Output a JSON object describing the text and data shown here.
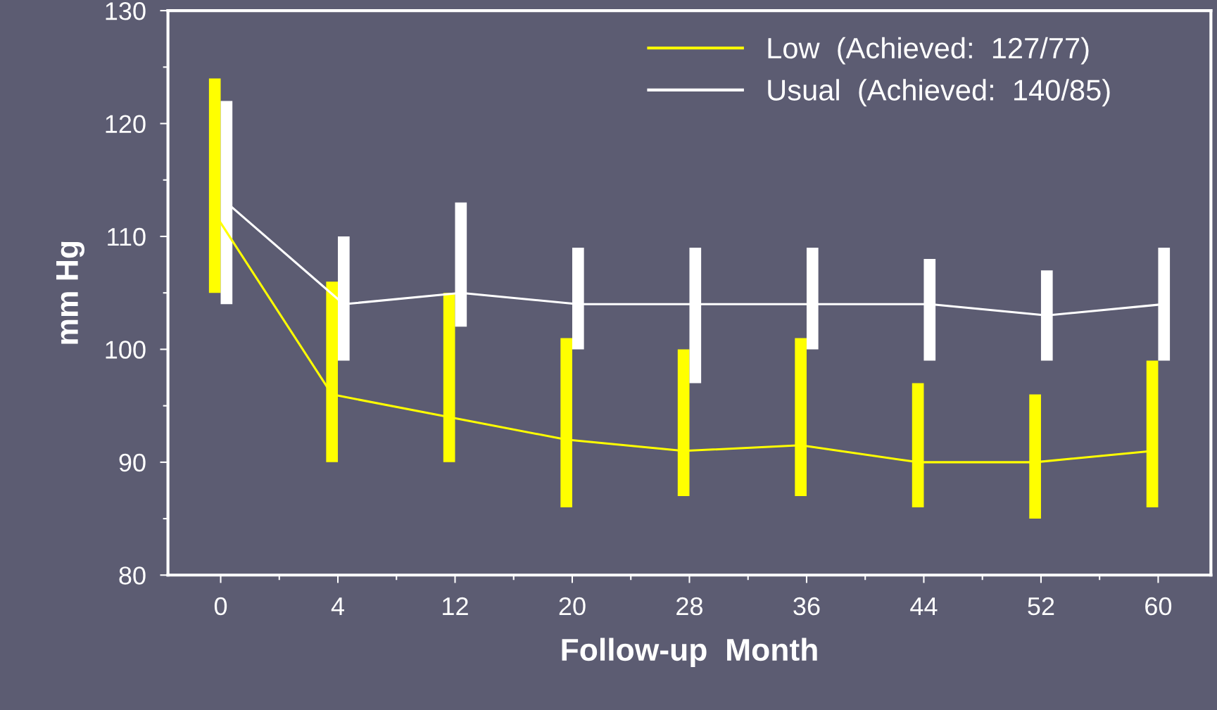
{
  "chart_data": {
    "type": "line",
    "xlabel": "Follow-up  Month",
    "ylabel": "mm Hg",
    "categories": [
      "0",
      "4",
      "12",
      "20",
      "28",
      "36",
      "44",
      "52",
      "60"
    ],
    "series": [
      {
        "name": "Low  (Achieved:  127/77)",
        "color": "#ffff00",
        "values": [
          112,
          96,
          94,
          92,
          91,
          91.5,
          90,
          90,
          91
        ],
        "errors": [
          [
            105,
            124
          ],
          [
            90,
            106
          ],
          [
            90,
            105
          ],
          [
            86,
            101
          ],
          [
            87,
            100
          ],
          [
            87,
            101
          ],
          [
            86,
            97
          ],
          [
            85,
            96
          ],
          [
            86,
            99
          ]
        ]
      },
      {
        "name": "Usual  (Achieved:  140/85)",
        "color": "#ffffff",
        "values": [
          113,
          104,
          105,
          104,
          104,
          104,
          104,
          103,
          104
        ],
        "errors": [
          [
            104,
            122
          ],
          [
            99,
            110
          ],
          [
            102,
            113
          ],
          [
            100,
            109
          ],
          [
            97,
            109
          ],
          [
            100,
            109
          ],
          [
            99,
            108
          ],
          [
            99,
            107
          ],
          [
            99,
            109
          ]
        ]
      }
    ],
    "ylim": [
      80,
      130
    ],
    "yticks": [
      80,
      90,
      100,
      110,
      120,
      130
    ],
    "grid": false,
    "legend": "top right",
    "line_style": "solid"
  }
}
